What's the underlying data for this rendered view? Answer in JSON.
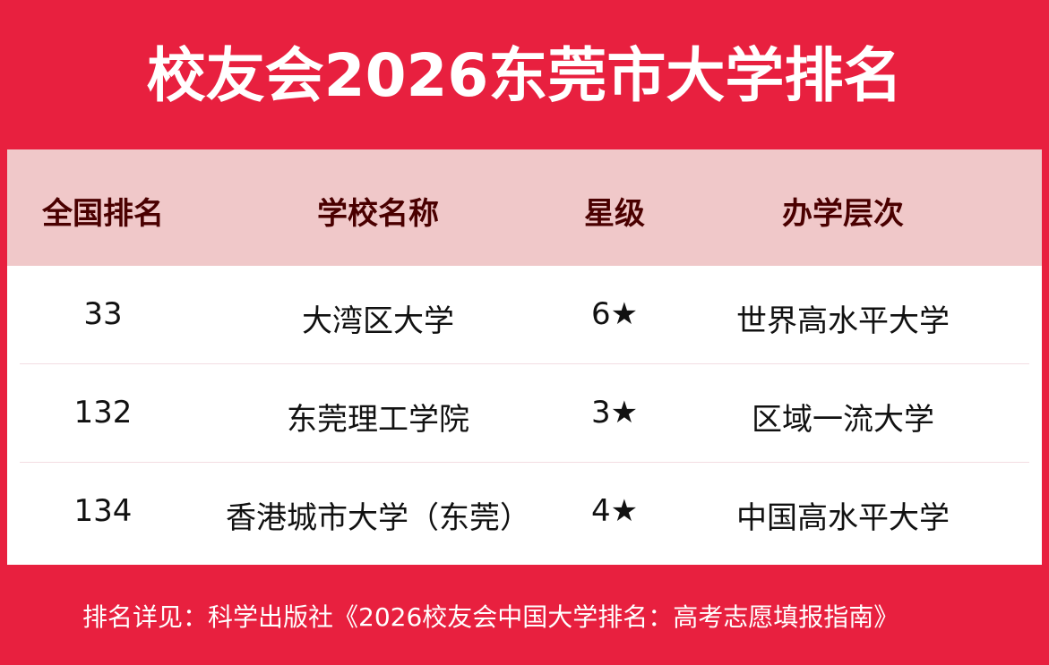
{
  "title": "校友会2026东莞市大学排名",
  "colors": {
    "background": "#E8203F",
    "header_bg": "#F0C8C9",
    "header_text": "#4A0000"
  },
  "table": {
    "columns": [
      "全国排名",
      "学校名称",
      "星级",
      "办学层次"
    ],
    "rows": [
      {
        "rank": "33",
        "name": "大湾区大学",
        "stars": "6★",
        "level": "世界高水平大学"
      },
      {
        "rank": "132",
        "name": "东莞理工学院",
        "stars": "3★",
        "level": "区域一流大学"
      },
      {
        "rank": "134",
        "name": "香港城市大学（东莞）",
        "stars": "4★",
        "level": "中国高水平大学"
      }
    ]
  },
  "footer": "排名详见：科学出版社《2026校友会中国大学排名：高考志愿填报指南》"
}
